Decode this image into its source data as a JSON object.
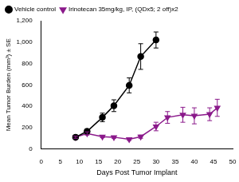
{
  "chart_data": {
    "type": "line",
    "x_label": "Days Post Tumor Implant",
    "y_label": "Mean Tumor Burden (mm³) ± SE",
    "series": [
      {
        "name": "Vehicle control",
        "color": "#000000",
        "marker": "circle",
        "x": [
          9,
          12,
          16,
          19,
          23,
          26,
          30
        ],
        "values": [
          110,
          165,
          295,
          405,
          595,
          865,
          1020
        ],
        "errors": [
          10,
          20,
          40,
          55,
          70,
          120,
          75
        ]
      },
      {
        "name": "Irinotecan 35mg/kg, IP, (QDx5; 2 off)x2",
        "color": "#8b1a8b",
        "marker": "triangle-down",
        "x": [
          9,
          12,
          16,
          19,
          23,
          26,
          30,
          33,
          37,
          40,
          44,
          46
        ],
        "values": [
          110,
          145,
          115,
          110,
          90,
          115,
          210,
          295,
          320,
          310,
          325,
          385
        ],
        "errors": [
          10,
          15,
          10,
          10,
          10,
          15,
          40,
          55,
          70,
          75,
          60,
          80
        ]
      }
    ],
    "xlim": [
      0,
      50
    ],
    "xticks": [
      0,
      5,
      10,
      15,
      20,
      25,
      30,
      35,
      40,
      45,
      50
    ],
    "ylim": [
      0,
      1200
    ],
    "yticks": [
      0,
      200,
      400,
      600,
      800,
      1000,
      1200
    ],
    "grid": false,
    "legend": "top"
  }
}
